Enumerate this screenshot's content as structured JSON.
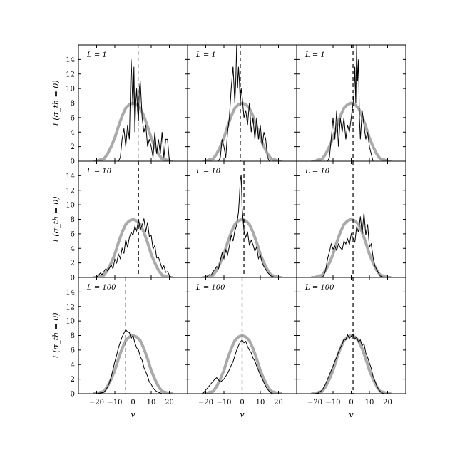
{
  "figure": {
    "ylabel": "I (σ_th = 0)",
    "xlabel": "v"
  },
  "chart_data": {
    "type": "line",
    "layout": "3x3 grid, rows share y-axis, columns share x-axis",
    "xlabel": "v",
    "ylabel": "I (σ_th = 0)",
    "xlim": [
      -30,
      30
    ],
    "ylim": [
      0,
      16
    ],
    "xticks": [
      -20,
      -10,
      0,
      10,
      20
    ],
    "yticks": [
      0,
      2,
      4,
      6,
      8,
      10,
      12,
      14
    ],
    "reference_curve": {
      "style": "thick gray line",
      "color": "#aaaaaa",
      "x": [
        -22,
        -20,
        -18,
        -16,
        -14,
        -12,
        -10,
        -8,
        -6,
        -4,
        -2,
        0,
        2,
        4,
        6,
        8,
        10,
        12,
        14,
        16,
        18,
        20,
        22
      ],
      "y": [
        0.0,
        0.0,
        0.2,
        0.3,
        1.0,
        2.0,
        3.2,
        4.8,
        6.2,
        7.3,
        7.8,
        8.0,
        7.8,
        7.3,
        6.2,
        4.8,
        3.2,
        2.0,
        1.0,
        0.3,
        0.2,
        0.0,
        0.0
      ]
    },
    "panels": [
      {
        "row": 0,
        "col": 0,
        "label": "L = 1",
        "mean_v": 2.8,
        "x": [
          -23,
          -20,
          -18,
          -16,
          -14,
          -13,
          -12,
          -11,
          -10,
          -9,
          -8,
          -7,
          -6,
          -5,
          -4,
          -3,
          -2,
          -1,
          0,
          0.5,
          1,
          1.5,
          2,
          2.5,
          3,
          3.5,
          4,
          5,
          6,
          7,
          8,
          9,
          10,
          11,
          12,
          13,
          14,
          15,
          16,
          17,
          18,
          19,
          20,
          22
        ],
        "y": [
          0,
          0,
          0,
          0,
          0,
          0,
          0,
          0,
          0,
          0,
          0,
          0.5,
          3,
          4.5,
          2,
          5,
          3,
          14,
          7,
          13,
          4,
          8,
          10,
          7,
          5.5,
          10,
          11,
          6,
          4,
          5,
          2,
          3,
          2,
          0.5,
          4,
          1,
          3,
          1,
          4,
          0.5,
          3,
          3,
          0,
          0
        ]
      },
      {
        "row": 0,
        "col": 1,
        "label": "L = 1",
        "mean_v": -1.0,
        "x": [
          -23,
          -20,
          -18,
          -16,
          -14,
          -13,
          -12,
          -11,
          -10,
          -9,
          -8,
          -7,
          -6,
          -5,
          -4,
          -3.5,
          -3,
          -2.5,
          -2,
          -1.5,
          -1,
          -0.5,
          0,
          1,
          2,
          3,
          4,
          5,
          6,
          7,
          8,
          9,
          10,
          11,
          12,
          13,
          14,
          15,
          16,
          18,
          20
        ],
        "y": [
          0,
          0,
          0,
          0,
          0,
          0,
          0.5,
          3,
          2,
          0.5,
          4,
          6,
          10,
          13,
          8,
          11,
          16,
          10,
          13,
          11,
          8,
          10,
          9,
          6,
          7,
          5,
          8,
          4,
          6,
          3,
          6,
          3,
          5,
          2,
          4,
          3,
          0.5,
          0,
          0,
          0,
          0
        ]
      },
      {
        "row": 0,
        "col": 2,
        "label": "L = 1",
        "mean_v": 1.0,
        "x": [
          -23,
          -20,
          -18,
          -16,
          -14,
          -13,
          -12,
          -11,
          -10,
          -9,
          -8,
          -7,
          -6,
          -5,
          -4,
          -3,
          -2,
          -1,
          0,
          1,
          1.5,
          2,
          2.5,
          3,
          3.5,
          4,
          4.5,
          5,
          6,
          7,
          8,
          9,
          10,
          11,
          12,
          14,
          16,
          20
        ],
        "y": [
          0,
          0,
          0,
          0,
          0,
          0,
          0.5,
          3,
          6,
          3,
          7,
          2,
          6,
          4,
          6,
          3,
          5,
          4,
          6,
          8,
          9,
          13,
          8,
          16,
          11,
          14,
          6,
          3,
          7,
          5,
          3,
          4,
          2,
          1,
          0,
          0,
          0,
          0
        ]
      },
      {
        "row": 1,
        "col": 0,
        "label": "L = 10",
        "mean_v": 3.0,
        "x": [
          -23,
          -22,
          -20,
          -19,
          -18,
          -17,
          -16,
          -15,
          -14,
          -13,
          -12,
          -11,
          -10,
          -9,
          -8,
          -7,
          -6,
          -5,
          -4,
          -3,
          -2,
          -1,
          0,
          1,
          2,
          3,
          4,
          5,
          6,
          7,
          8,
          9,
          10,
          11,
          12,
          13,
          14,
          15,
          16,
          17,
          18,
          19,
          20,
          21,
          22
        ],
        "y": [
          0,
          0,
          0,
          0.3,
          0.6,
          0.4,
          0.8,
          1.2,
          0.9,
          1.3,
          1.7,
          1.2,
          2.5,
          2.0,
          3.2,
          2.6,
          4.0,
          3.3,
          5.2,
          4.1,
          5.5,
          6.2,
          5.8,
          7.0,
          6.4,
          8.0,
          6.5,
          7.2,
          8.1,
          6.3,
          7.6,
          5.6,
          5.8,
          3.9,
          4.4,
          2.7,
          2.8,
          2.0,
          1.2,
          1.6,
          0.7,
          0.8,
          0.3,
          0,
          0
        ]
      },
      {
        "row": 1,
        "col": 1,
        "label": "L = 10",
        "mean_v": 1.0,
        "x": [
          -23,
          -20,
          -19,
          -18,
          -17,
          -16,
          -15,
          -14,
          -13,
          -12,
          -11,
          -10,
          -9,
          -8,
          -7,
          -6,
          -5,
          -4,
          -3,
          -2,
          -1.5,
          -1,
          -0.5,
          0,
          1,
          2,
          3,
          4,
          5,
          6,
          7,
          8,
          9,
          10,
          11,
          12,
          13,
          14,
          15,
          16,
          17,
          18,
          20
        ],
        "y": [
          0,
          0,
          0.2,
          0.4,
          0.3,
          0.8,
          1.1,
          1.5,
          1.2,
          2.3,
          3.4,
          2.6,
          3.8,
          3.1,
          4.3,
          5.8,
          5.0,
          6.4,
          7.2,
          9.0,
          11.0,
          13.4,
          14.1,
          9.6,
          6.4,
          5.5,
          6.3,
          4.4,
          5.1,
          4.5,
          3.6,
          4.2,
          2.6,
          3.1,
          2.0,
          1.5,
          1.1,
          0.7,
          0.4,
          0.2,
          0.1,
          0,
          0
        ]
      },
      {
        "row": 1,
        "col": 2,
        "label": "L = 10",
        "mean_v": 1.0,
        "x": [
          -23,
          -20,
          -18,
          -16,
          -15,
          -14,
          -13,
          -12,
          -11,
          -10,
          -9,
          -8,
          -7,
          -6,
          -5,
          -4,
          -3,
          -2,
          -1,
          0,
          1,
          2,
          3,
          4,
          5,
          6,
          7,
          8,
          9,
          10,
          11,
          12,
          13,
          14,
          15,
          16,
          17,
          18,
          20
        ],
        "y": [
          0,
          0,
          0,
          0,
          0.3,
          1.1,
          2.6,
          3.5,
          4.6,
          3.9,
          4.3,
          3.7,
          4.6,
          4.1,
          3.8,
          5.0,
          4.6,
          5.3,
          4.5,
          6.0,
          5.4,
          4.8,
          7.0,
          6.2,
          8.4,
          6.0,
          8.9,
          5.8,
          7.3,
          4.2,
          4.6,
          2.8,
          1.6,
          1.1,
          0.6,
          0.2,
          0.1,
          0,
          0
        ]
      },
      {
        "row": 2,
        "col": 0,
        "label": "L = 100",
        "mean_v": -4.0,
        "x": [
          -23,
          -20,
          -18,
          -16,
          -15,
          -14,
          -13,
          -12,
          -11,
          -10,
          -9,
          -8,
          -7,
          -6,
          -5,
          -4,
          -3,
          -2,
          -1,
          0,
          1,
          2,
          3,
          4,
          5,
          6,
          7,
          8,
          9,
          10,
          11,
          12,
          13,
          14,
          15,
          16,
          17,
          18,
          20
        ],
        "y": [
          0,
          0,
          0.1,
          0.2,
          0.5,
          0.9,
          1.5,
          2.3,
          3.3,
          4.4,
          5.3,
          6.3,
          7.1,
          7.8,
          8.3,
          8.8,
          8.5,
          8.4,
          7.6,
          8.0,
          7.0,
          6.3,
          6.0,
          5.1,
          4.6,
          3.6,
          3.0,
          2.4,
          1.6,
          1.3,
          0.8,
          0.5,
          0.3,
          0.2,
          0.1,
          0,
          0,
          0,
          0
        ]
      },
      {
        "row": 2,
        "col": 1,
        "label": "L = 100",
        "mean_v": 0.0,
        "x": [
          -23,
          -22,
          -21,
          -20,
          -19,
          -18,
          -17,
          -16,
          -15,
          -14,
          -13,
          -12,
          -11,
          -10,
          -9,
          -8,
          -7,
          -6,
          -5,
          -4,
          -3,
          -2,
          -1,
          0,
          1,
          2,
          3,
          4,
          5,
          6,
          7,
          8,
          9,
          10,
          11,
          12,
          13,
          14,
          15,
          16,
          17,
          18,
          20
        ],
        "y": [
          0,
          0,
          0.2,
          0.5,
          0.8,
          1.1,
          1.4,
          1.7,
          2.0,
          2.2,
          1.9,
          1.6,
          1.8,
          2.0,
          2.4,
          2.8,
          3.3,
          3.9,
          4.4,
          5.2,
          6.0,
          6.6,
          7.1,
          7.4,
          7.0,
          7.2,
          6.5,
          6.0,
          5.6,
          4.9,
          4.5,
          3.8,
          3.2,
          2.6,
          2.1,
          1.5,
          1.0,
          0.6,
          0.3,
          0.1,
          0,
          0,
          0
        ]
      },
      {
        "row": 2,
        "col": 2,
        "label": "L = 100",
        "mean_v": 1.0,
        "x": [
          -23,
          -20,
          -18,
          -17,
          -16,
          -15,
          -14,
          -13,
          -12,
          -11,
          -10,
          -9,
          -8,
          -7,
          -6,
          -5,
          -4,
          -3,
          -2,
          -1,
          0,
          1,
          2,
          3,
          4,
          5,
          6,
          7,
          8,
          9,
          10,
          11,
          12,
          13,
          14,
          15,
          16,
          17,
          18,
          20
        ],
        "y": [
          0,
          0,
          0.1,
          0.3,
          0.5,
          0.9,
          1.4,
          2.0,
          2.6,
          3.2,
          3.8,
          4.5,
          5.0,
          5.7,
          6.3,
          6.8,
          7.5,
          7.4,
          8.1,
          7.6,
          7.9,
          8.2,
          7.5,
          7.8,
          7.1,
          7.4,
          6.6,
          6.9,
          5.6,
          5.0,
          4.2,
          3.5,
          2.4,
          1.8,
          1.1,
          0.6,
          0.3,
          0.1,
          0,
          0
        ]
      }
    ]
  }
}
